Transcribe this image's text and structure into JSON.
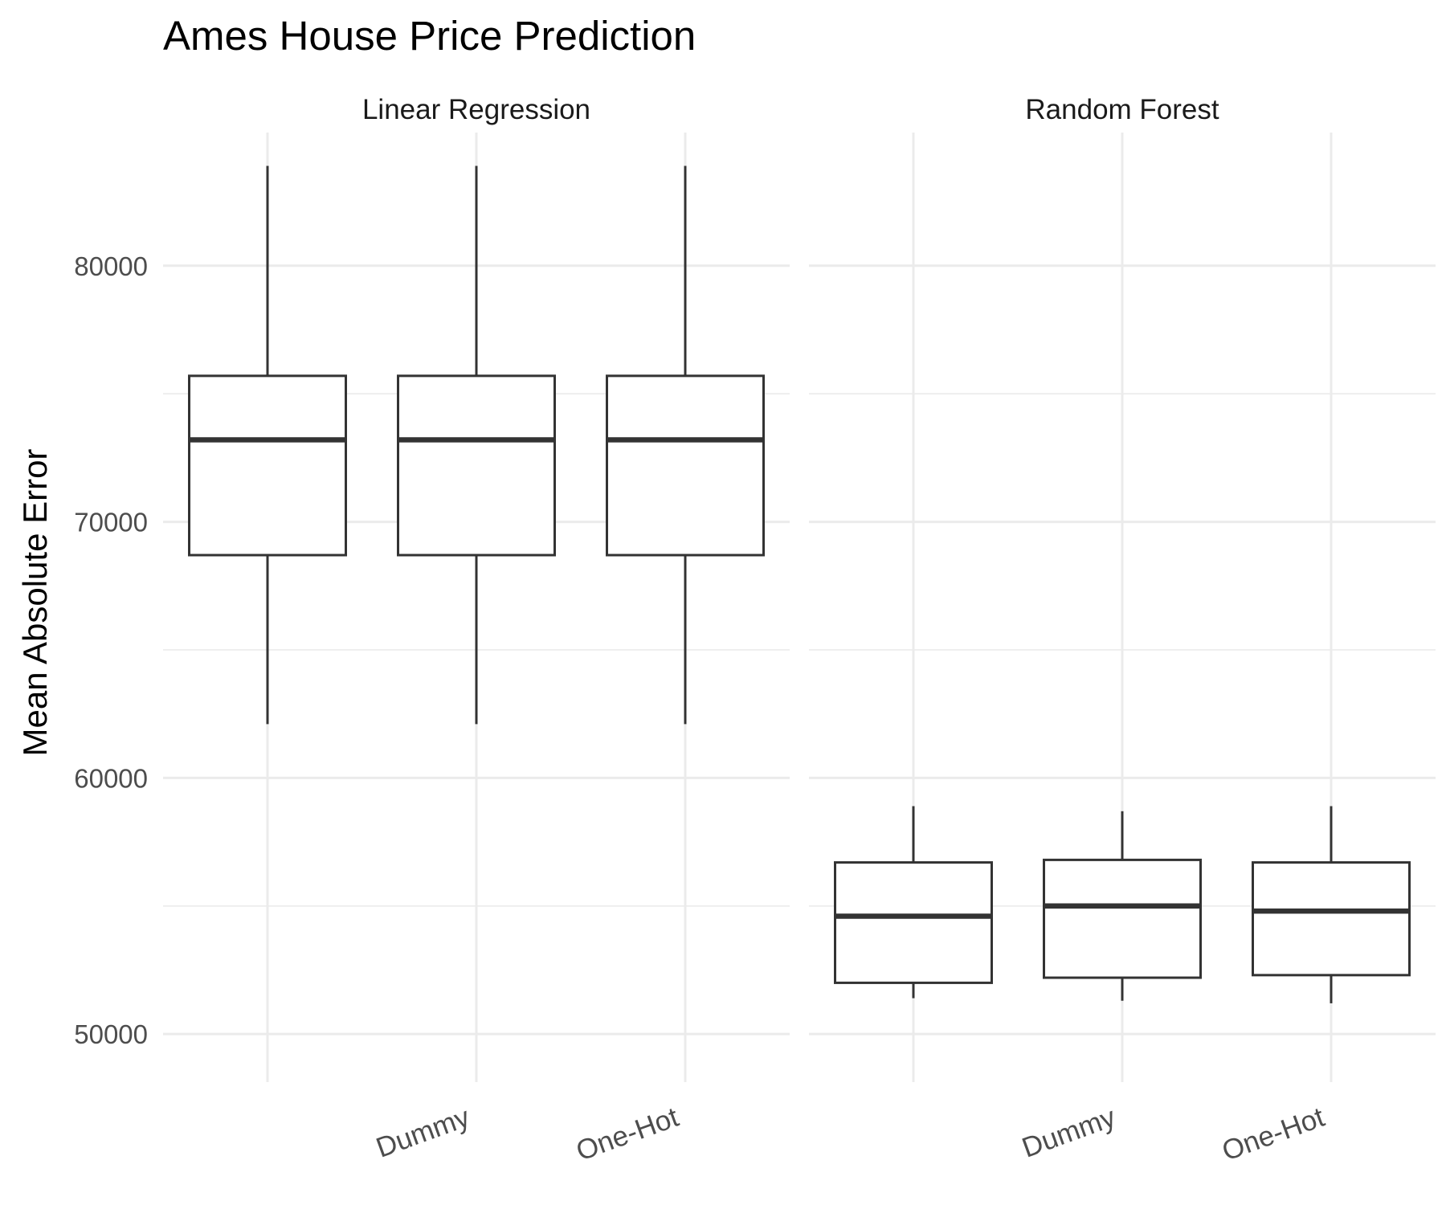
{
  "chart_data": {
    "type": "boxplot",
    "title": "Ames House Price Prediction",
    "ylabel": "Mean Absolute Error",
    "xlabel": "",
    "ylim": [
      48500,
      85200
    ],
    "yticks": [
      50000,
      60000,
      70000,
      80000
    ],
    "grid": true,
    "categories": [
      "",
      "Dummy",
      "One-Hot"
    ],
    "facets": [
      {
        "name": "Linear Regression",
        "boxes": [
          {
            "category": "",
            "min": 62100,
            "q1": 68700,
            "median": 73200,
            "q3": 75700,
            "max": 83900
          },
          {
            "category": "Dummy",
            "min": 62100,
            "q1": 68700,
            "median": 73200,
            "q3": 75700,
            "max": 83900
          },
          {
            "category": "One-Hot",
            "min": 62100,
            "q1": 68700,
            "median": 73200,
            "q3": 75700,
            "max": 83900
          }
        ]
      },
      {
        "name": "Random Forest",
        "boxes": [
          {
            "category": "",
            "min": 51400,
            "q1": 52000,
            "median": 54600,
            "q3": 56700,
            "max": 58900
          },
          {
            "category": "Dummy",
            "min": 51300,
            "q1": 52200,
            "median": 55000,
            "q3": 56800,
            "max": 58700
          },
          {
            "category": "One-Hot",
            "min": 51200,
            "q1": 52300,
            "median": 54800,
            "q3": 56700,
            "max": 58900
          }
        ]
      }
    ]
  },
  "colors": {
    "grid": "#ebebeb",
    "box_stroke": "#333333",
    "background": "#ffffff"
  }
}
